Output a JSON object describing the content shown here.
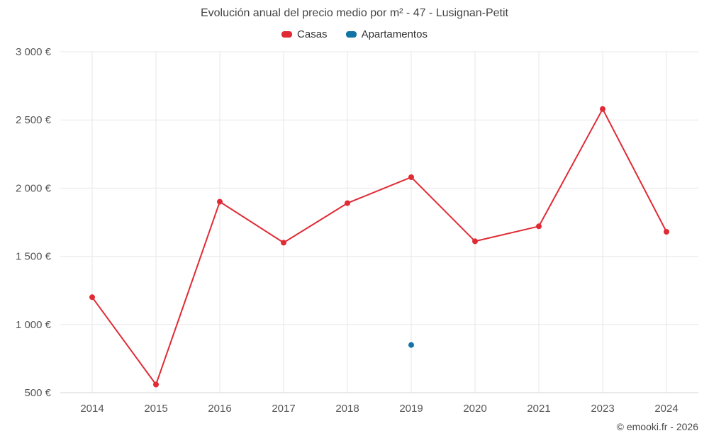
{
  "chart_data": {
    "type": "line",
    "title": "Evolución anual del precio medio por m² - 47 - Lusignan-Petit",
    "categories": [
      "2014",
      "2015",
      "2016",
      "2017",
      "2018",
      "2019",
      "2020",
      "2021",
      "2023",
      "2024"
    ],
    "series": [
      {
        "name": "Casas",
        "color": "#e02b35",
        "values": [
          1200,
          560,
          1900,
          1600,
          1890,
          2080,
          1610,
          1720,
          2580,
          1680
        ]
      },
      {
        "name": "Apartamentos",
        "color": "#1274a5",
        "values": [
          null,
          null,
          null,
          null,
          null,
          850,
          null,
          null,
          null,
          null
        ]
      }
    ],
    "ylim": [
      500,
      3000
    ],
    "yticks": [
      500,
      1000,
      1500,
      2000,
      2500,
      3000
    ],
    "ytick_labels": [
      "500 €",
      "1 000 €",
      "1 500 €",
      "2 000 €",
      "2 500 €",
      "3 000 €"
    ],
    "xlabel": "",
    "ylabel": "",
    "grid": true,
    "legend_position": "top",
    "footer": "© emooki.fr - 2026",
    "grid_color": "#e7e7e7",
    "axis_color": "#d5d5d5"
  }
}
